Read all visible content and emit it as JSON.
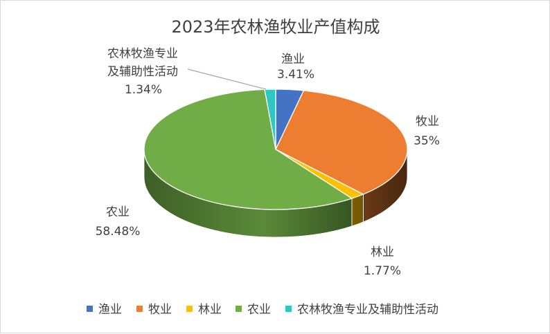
{
  "chart_data": {
    "type": "pie",
    "style": "3d",
    "title": "2023年农林渔牧业产值构成",
    "legend_position": "bottom",
    "slices": [
      {
        "name": "渔业",
        "value": 3.41,
        "label": "3.41%",
        "color": "#4472C4"
      },
      {
        "name": "牧业",
        "value": 35,
        "label": "35%",
        "color": "#ED7D31"
      },
      {
        "name": "林业",
        "value": 1.77,
        "label": "1.77%",
        "color": "#FFC000"
      },
      {
        "name": "农业",
        "value": 58.48,
        "label": "58.48%",
        "color": "#70AD47"
      },
      {
        "name": "农林牧渔专业及辅助性活动",
        "value": 1.34,
        "label": "1.34%",
        "color": "#2FC7C2"
      }
    ]
  }
}
